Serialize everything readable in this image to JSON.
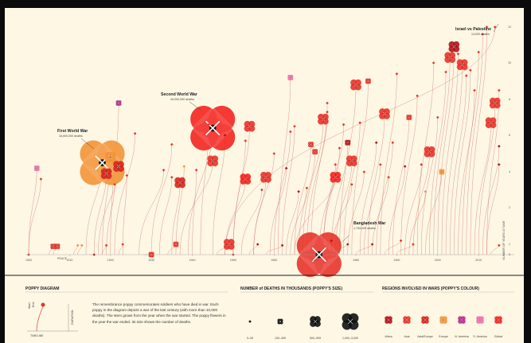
{
  "chart_data": {
    "type": "scatter",
    "x_axis": {
      "ticks": [
        "1900",
        "1910",
        "1920",
        "1930",
        "1940",
        "1950",
        "1960",
        "1970",
        "1980",
        "1990",
        "2000",
        "2010"
      ],
      "min": 1900,
      "max": 2016
    },
    "y_axis": {
      "label": "NUMBER OF YEARS AT WAR",
      "ticks": [
        "0",
        "1",
        "2",
        "4",
        "6",
        "8",
        "10",
        "12"
      ]
    },
    "peace_label": "PEACE",
    "annotations": [
      {
        "title": "First World War",
        "subtitle": "16,000,000 deaths"
      },
      {
        "title": "Second World War",
        "subtitle": "49,000,000 deaths"
      },
      {
        "title": "Israel vs Palestine",
        "subtitle": "14,000 deaths"
      },
      {
        "title": "Bangladesh War",
        "subtitle": "1,700,000 deaths"
      }
    ],
    "wars": [
      {
        "start": 1914,
        "end": 1918,
        "duration": 4.5,
        "size_class": 4,
        "region": "Europe"
      },
      {
        "start": 1939,
        "end": 1945,
        "duration": 6.4,
        "size_class": 4,
        "region": "Global"
      },
      {
        "start": 1948,
        "end": 2014,
        "duration": 12.8,
        "size_class": 1,
        "region": "Asia"
      },
      {
        "start": 1971,
        "end": 1971,
        "duration": 0,
        "size_class": 4,
        "region": "Asia"
      },
      {
        "start": 1918,
        "end": 1920,
        "duration": 4.8,
        "size_class": 3,
        "region": "Europe"
      },
      {
        "start": 1917,
        "end": 1922,
        "duration": 4.3,
        "size_class": 3,
        "region": "Asia/Europe"
      },
      {
        "start": 1916,
        "end": 1919,
        "duration": 3.9,
        "size_class": 3,
        "region": "Asia/Europe"
      },
      {
        "start": 1900,
        "end": 1902,
        "duration": 4.2,
        "size_class": 2,
        "region": "S. America"
      },
      {
        "start": 1900,
        "end": 1903,
        "duration": 3.6,
        "size_class": 1,
        "region": "Asia"
      },
      {
        "start": 1905,
        "end": 1906,
        "duration": 0.8,
        "size_class": 2,
        "region": "Asia"
      },
      {
        "start": 1906,
        "end": 1907,
        "duration": 0.8,
        "size_class": 2,
        "region": "Asia"
      },
      {
        "start": 1900,
        "end": 1900,
        "duration": 0,
        "size_class": 1,
        "region": "Asia"
      },
      {
        "start": 1911,
        "end": 1912,
        "duration": 0.9,
        "size_class": 1,
        "region": "Europe"
      },
      {
        "start": 1912,
        "end": 1913,
        "duration": 0.9,
        "size_class": 1,
        "region": "Europe"
      },
      {
        "start": 1915,
        "end": 1916,
        "duration": 0,
        "size_class": 1,
        "region": "Africa"
      },
      {
        "start": 1918,
        "end": 1919,
        "duration": 0.9,
        "size_class": 1,
        "region": "Asia"
      },
      {
        "start": 1919,
        "end": 1921,
        "duration": 3.3,
        "size_class": 1,
        "region": "Asia"
      },
      {
        "start": 1920,
        "end": 1922,
        "duration": 7.8,
        "size_class": 2,
        "region": "N. America"
      },
      {
        "start": 1921,
        "end": 1926,
        "duration": 6.1,
        "size_class": 1,
        "region": "Asia"
      },
      {
        "start": 1922,
        "end": 1923,
        "duration": 1.0,
        "size_class": 1,
        "region": "Asia"
      },
      {
        "start": 1923,
        "end": 1924,
        "duration": 3.8,
        "size_class": 1,
        "region": "Asia"
      },
      {
        "start": 1928,
        "end": 1930,
        "duration": 0,
        "size_class": 2,
        "region": "Global"
      },
      {
        "start": 1927,
        "end": 1933,
        "duration": 4.1,
        "size_class": 1,
        "region": "Asia"
      },
      {
        "start": 1932,
        "end": 1935,
        "duration": 3.7,
        "size_class": 1,
        "region": "Asia"
      },
      {
        "start": 1930,
        "end": 1935,
        "duration": 5.5,
        "size_class": 1,
        "region": "Asia"
      },
      {
        "start": 1934,
        "end": 1936,
        "duration": 1.0,
        "size_class": 2,
        "region": "Asia"
      },
      {
        "start": 1936,
        "end": 1938,
        "duration": 4.3,
        "size_class": 1,
        "region": "Europe"
      },
      {
        "start": 1935,
        "end": 1937,
        "duration": 3.4,
        "size_class": 3,
        "region": "Asia/Europe"
      },
      {
        "start": 1937,
        "end": 1945,
        "duration": 4.6,
        "size_class": 3,
        "region": "Asia"
      },
      {
        "start": 1940,
        "end": 1941,
        "duration": 4.1,
        "size_class": 1,
        "region": "Asia"
      },
      {
        "start": 1942,
        "end": 1944,
        "duration": 6.6,
        "size_class": 1,
        "region": "Asia"
      },
      {
        "start": 1945,
        "end": 1948,
        "duration": 6.0,
        "size_class": 1,
        "region": "Africa"
      },
      {
        "start": 1946,
        "end": 1949,
        "duration": 1.0,
        "size_class": 3,
        "region": "Asia"
      },
      {
        "start": 1946,
        "end": 1950,
        "duration": 0,
        "size_class": 1,
        "region": "Asia"
      },
      {
        "start": 1948,
        "end": 1953,
        "duration": 3.6,
        "size_class": 3,
        "region": "Global"
      },
      {
        "start": 1950,
        "end": 1953,
        "duration": 5.7,
        "size_class": 1,
        "region": "Asia"
      },
      {
        "start": 1950,
        "end": 1954,
        "duration": 6.5,
        "size_class": 3,
        "region": "Asia"
      },
      {
        "start": 1952,
        "end": 1957,
        "duration": 3.0,
        "size_class": 1,
        "region": "Asia"
      },
      {
        "start": 1954,
        "end": 1956,
        "duration": 1.0,
        "size_class": 1,
        "region": "Africa"
      },
      {
        "start": 1955,
        "end": 1958,
        "duration": 3.7,
        "size_class": 3,
        "region": "Asia"
      },
      {
        "start": 1955,
        "end": 1960,
        "duration": 5.0,
        "size_class": 1,
        "region": "Asia"
      },
      {
        "start": 1958,
        "end": 1962,
        "duration": 0.9,
        "size_class": 1,
        "region": "Africa"
      },
      {
        "start": 1959,
        "end": 1963,
        "duration": 4.2,
        "size_class": 1,
        "region": "Africa"
      },
      {
        "start": 1960,
        "end": 1964,
        "duration": 6.2,
        "size_class": 1,
        "region": "Asia"
      },
      {
        "start": 1961,
        "end": 1964,
        "duration": 9.2,
        "size_class": 2,
        "region": "S. America"
      },
      {
        "start": 1962,
        "end": 1965,
        "duration": 6.5,
        "size_class": 1,
        "region": "Asia"
      },
      {
        "start": 1963,
        "end": 1966,
        "duration": 2.9,
        "size_class": 1,
        "region": "Africa"
      },
      {
        "start": 1964,
        "end": 1968,
        "duration": 3.1,
        "size_class": 1,
        "region": "Asia"
      },
      {
        "start": 1965,
        "end": 1969,
        "duration": 5.5,
        "size_class": 2,
        "region": "Asia"
      },
      {
        "start": 1966,
        "end": 1970,
        "duration": 5.1,
        "size_class": 2,
        "region": "Asia"
      },
      {
        "start": 1965,
        "end": 1975,
        "duration": 3.7,
        "size_class": 3,
        "region": "Global"
      },
      {
        "start": 1967,
        "end": 1972,
        "duration": 6.9,
        "size_class": 3,
        "region": "Asia"
      },
      {
        "start": 1968,
        "end": 1973,
        "duration": 7.3,
        "size_class": 1,
        "region": "Asia"
      },
      {
        "start": 1969,
        "end": 1973,
        "duration": 7.8,
        "size_class": 1,
        "region": "Asia"
      },
      {
        "start": 1970,
        "end": 1974,
        "duration": 1.1,
        "size_class": 1,
        "region": "Africa"
      },
      {
        "start": 1971,
        "end": 1975,
        "duration": 4.4,
        "size_class": 1,
        "region": "Asia"
      },
      {
        "start": 1972,
        "end": 1976,
        "duration": 5.3,
        "size_class": 1,
        "region": "Asia"
      },
      {
        "start": 1972,
        "end": 1977,
        "duration": 6.6,
        "size_class": 1,
        "region": "Asia"
      },
      {
        "start": 1973,
        "end": 1978,
        "duration": 1.0,
        "size_class": 1,
        "region": "Africa"
      },
      {
        "start": 1974,
        "end": 1978,
        "duration": 5.6,
        "size_class": 2,
        "region": "Africa"
      },
      {
        "start": 1974,
        "end": 1979,
        "duration": 3.3,
        "size_class": 1,
        "region": "Asia"
      },
      {
        "start": 1975,
        "end": 1979,
        "duration": 4.6,
        "size_class": 3,
        "region": "Asia"
      },
      {
        "start": 1976,
        "end": 1980,
        "duration": 8.8,
        "size_class": 3,
        "region": "Asia"
      },
      {
        "start": 1977,
        "end": 1981,
        "duration": 6.7,
        "size_class": 1,
        "region": "Asia"
      },
      {
        "start": 1978,
        "end": 1982,
        "duration": 4.0,
        "size_class": 1,
        "region": "Asia"
      },
      {
        "start": 1979,
        "end": 1983,
        "duration": 9.0,
        "size_class": 2,
        "region": "Asia"
      },
      {
        "start": 1980,
        "end": 1984,
        "duration": 1.0,
        "size_class": 1,
        "region": "Africa"
      },
      {
        "start": 1981,
        "end": 1985,
        "duration": 5.6,
        "size_class": 1,
        "region": "Africa"
      },
      {
        "start": 1982,
        "end": 1986,
        "duration": 4.4,
        "size_class": 1,
        "region": "Asia"
      },
      {
        "start": 1983,
        "end": 1987,
        "duration": 7.2,
        "size_class": 3,
        "region": "Asia"
      },
      {
        "start": 1984,
        "end": 1988,
        "duration": 3.7,
        "size_class": 1,
        "region": "Asia"
      },
      {
        "start": 1985,
        "end": 1989,
        "duration": 5.6,
        "size_class": 1,
        "region": "Asia"
      },
      {
        "start": 1986,
        "end": 1990,
        "duration": 9.4,
        "size_class": 1,
        "region": "Asia"
      },
      {
        "start": 1987,
        "end": 1991,
        "duration": 1.1,
        "size_class": 1,
        "region": "Asia"
      },
      {
        "start": 1988,
        "end": 1992,
        "duration": 4.3,
        "size_class": 1,
        "region": "Africa"
      },
      {
        "start": 1989,
        "end": 1993,
        "duration": 7.0,
        "size_class": 2,
        "region": "Asia"
      },
      {
        "start": 1990,
        "end": 1994,
        "duration": 1.0,
        "size_class": 1,
        "region": "Asia"
      },
      {
        "start": 1991,
        "end": 1995,
        "duration": 8.2,
        "size_class": 1,
        "region": "Asia"
      },
      {
        "start": 1992,
        "end": 1996,
        "duration": 4.4,
        "size_class": 1,
        "region": "Asia"
      },
      {
        "start": 1993,
        "end": 1997,
        "duration": 2.9,
        "size_class": 1,
        "region": "Europe"
      },
      {
        "start": 1994,
        "end": 1998,
        "duration": 5.1,
        "size_class": 3,
        "region": "Asia"
      },
      {
        "start": 1995,
        "end": 1999,
        "duration": 10.0,
        "size_class": 1,
        "region": "Asia"
      },
      {
        "start": 1996,
        "end": 2000,
        "duration": 7.0,
        "size_class": 1,
        "region": "Asia"
      },
      {
        "start": 1997,
        "end": 2001,
        "duration": 4.0,
        "size_class": 2,
        "region": "Europe"
      },
      {
        "start": 1998,
        "end": 2002,
        "duration": 9.5,
        "size_class": 1,
        "region": "Asia"
      },
      {
        "start": 1999,
        "end": 2003,
        "duration": 10.3,
        "size_class": 3,
        "region": "Asia"
      },
      {
        "start": 2000,
        "end": 2004,
        "duration": 10.9,
        "size_class": 3,
        "region": "Africa"
      },
      {
        "start": 2001,
        "end": 2005,
        "duration": 10.5,
        "size_class": 1,
        "region": "Asia"
      },
      {
        "start": 2002,
        "end": 2006,
        "duration": 9.9,
        "size_class": 3,
        "region": "Asia"
      },
      {
        "start": 2003,
        "end": 2007,
        "duration": 9.3,
        "size_class": 1,
        "region": "Asia"
      },
      {
        "start": 2004,
        "end": 2008,
        "duration": 9.6,
        "size_class": 1,
        "region": "Asia"
      },
      {
        "start": 2005,
        "end": 2009,
        "duration": 8.5,
        "size_class": 1,
        "region": "Asia"
      },
      {
        "start": 2006,
        "end": 2010,
        "duration": 10.6,
        "size_class": 1,
        "region": "Asia"
      },
      {
        "start": 2007,
        "end": 2011,
        "duration": 11.6,
        "size_class": 1,
        "region": "Asia"
      },
      {
        "start": 2008,
        "end": 2012,
        "duration": 12.0,
        "size_class": 1,
        "region": "Asia"
      },
      {
        "start": 2009,
        "end": 2013,
        "duration": 6.7,
        "size_class": 3,
        "region": "Asia"
      },
      {
        "start": 2010,
        "end": 2014,
        "duration": 7.8,
        "size_class": 3,
        "region": "Asia"
      },
      {
        "start": 2011,
        "end": 2015,
        "duration": 5.4,
        "size_class": 1,
        "region": "Africa"
      },
      {
        "start": 2012,
        "end": 2015,
        "duration": 8.5,
        "size_class": 1,
        "region": "Asia"
      },
      {
        "start": 2012,
        "end": 2015,
        "duration": 4.4,
        "size_class": 1,
        "region": "Africa"
      },
      {
        "start": 2013,
        "end": 2015,
        "duration": 0.9,
        "size_class": 1,
        "region": "Asia"
      }
    ],
    "legend": {
      "diagram": {
        "title": "POPPY DIAGRAM",
        "start_label": "Start",
        "end_label": "End",
        "duration_label": "DURATION",
        "timeline_label": "TIMELINE",
        "text": "The remembrance poppy commemorates soldiers who have died in war. Each poppy in the diagram depicts a war of the last century (with more than 10,000 deaths). The stem grows from the year when the war started. The poppy flowers in the year the war ended. Its size shows the number of deaths."
      },
      "size": {
        "title": "NUMBER of DEATHS IN THOUSANDS (POPPY'S SIZE)",
        "items": [
          {
            "label": "0–99"
          },
          {
            "label": "100–499"
          },
          {
            "label": "500–999"
          },
          {
            "label": "1,000–3,000"
          }
        ]
      },
      "regions": {
        "title": "REGIONS INVOLVED IN WARS (POPPY'S COLOUR)",
        "items": [
          {
            "label": "Africa",
            "color": "#b3121b"
          },
          {
            "label": "Asia",
            "color": "#e8332a"
          },
          {
            "label": "Asia/Europe",
            "color": "#d5261f"
          },
          {
            "label": "Europe",
            "color": "#f39437"
          },
          {
            "label": "N. America",
            "color": "#b62c8f"
          },
          {
            "label": "S. America",
            "color": "#f06ea9"
          },
          {
            "label": "Global",
            "color": "#f4241f"
          }
        ]
      }
    }
  }
}
